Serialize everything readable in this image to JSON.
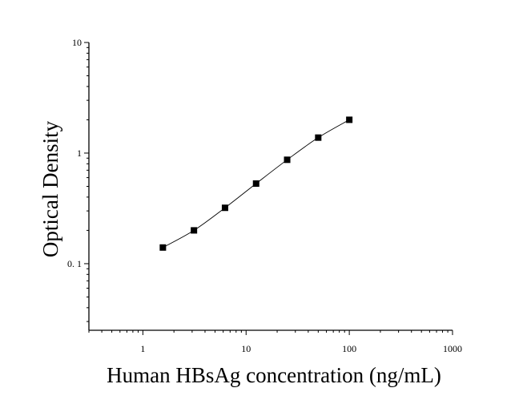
{
  "chart_data": {
    "type": "scatter",
    "xlabel": "Human HBsAg concentration (ng/mL)",
    "ylabel": "Optical Density",
    "x_scale": "log",
    "y_scale": "log",
    "xlim": [
      0.3,
      1000
    ],
    "ylim": [
      0.025,
      10
    ],
    "x_ticks": [
      {
        "value": 1,
        "label": "1"
      },
      {
        "value": 10,
        "label": "10"
      },
      {
        "value": 100,
        "label": "100"
      },
      {
        "value": 1000,
        "label": "1000"
      }
    ],
    "y_ticks": [
      {
        "value": 0.1,
        "label": "0. 1"
      },
      {
        "value": 1,
        "label": "1"
      },
      {
        "value": 10,
        "label": "10"
      }
    ],
    "grid": false,
    "fit_line": true,
    "series": [
      {
        "x": [
          1.5625,
          3.125,
          6.25,
          12.5,
          25,
          50,
          100
        ],
        "y": [
          0.14,
          0.2,
          0.32,
          0.53,
          0.87,
          1.38,
          2.0
        ]
      }
    ]
  }
}
